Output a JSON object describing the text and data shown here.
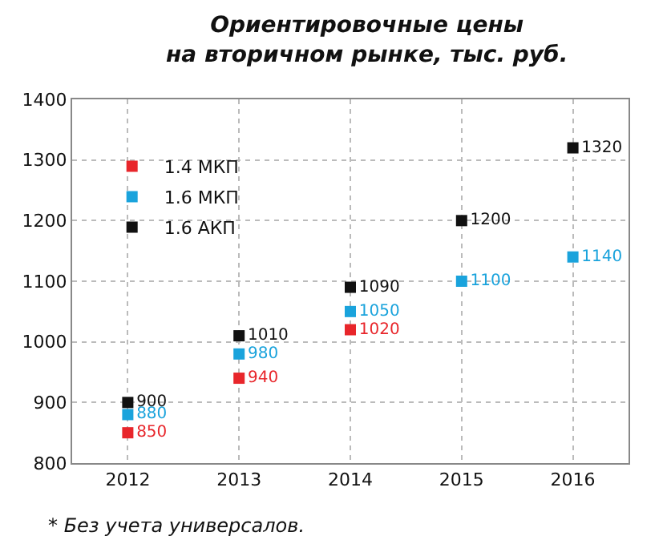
{
  "chart_data": {
    "type": "scatter",
    "title": "Ориентировочные цены\nна вторичном рынке, тыс. руб.",
    "categories": [
      "2012",
      "2013",
      "2014",
      "2015",
      "2016"
    ],
    "series": [
      {
        "name": "1.4 МКП",
        "color": "#e8262b",
        "values": [
          850,
          940,
          1020,
          null,
          null
        ]
      },
      {
        "name": "1.6 МКП",
        "color": "#1aa3dc",
        "values": [
          880,
          980,
          1050,
          1100,
          1140
        ]
      },
      {
        "name": "1.6 АКП",
        "color": "#111111",
        "values": [
          900,
          1010,
          1090,
          1200,
          1320
        ]
      }
    ],
    "ylim": [
      800,
      1400
    ],
    "yticks": [
      800,
      900,
      1000,
      1100,
      1200,
      1300,
      1400
    ],
    "grid": true,
    "legend": "top left",
    "marker": "square",
    "data_labels": true,
    "annotations": [
      "* Без учета универсалов."
    ]
  }
}
